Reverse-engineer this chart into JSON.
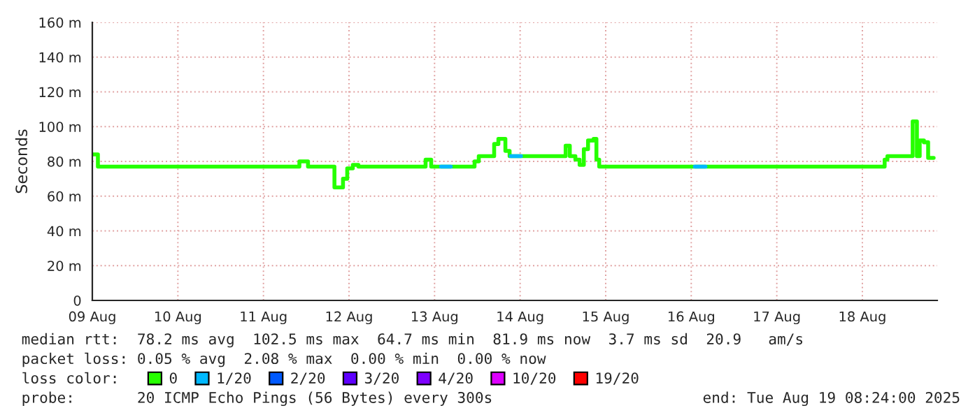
{
  "chart_data": {
    "type": "step",
    "ylabel": "Seconds",
    "xlim": [
      "2025-08-09T00:00",
      "2025-08-18T21:00"
    ],
    "xticks": [
      {
        "value": "2025-08-09",
        "label": "09 Aug"
      },
      {
        "value": "2025-08-10",
        "label": "10 Aug"
      },
      {
        "value": "2025-08-11",
        "label": "11 Aug"
      },
      {
        "value": "2025-08-12",
        "label": "12 Aug"
      },
      {
        "value": "2025-08-13",
        "label": "13 Aug"
      },
      {
        "value": "2025-08-14",
        "label": "14 Aug"
      },
      {
        "value": "2025-08-15",
        "label": "15 Aug"
      },
      {
        "value": "2025-08-16",
        "label": "16 Aug"
      },
      {
        "value": "2025-08-17",
        "label": "17 Aug"
      },
      {
        "value": "2025-08-18",
        "label": "18 Aug"
      }
    ],
    "ylim": [
      0,
      160
    ],
    "yticks": [
      0,
      {
        "value": 20,
        "label": "20 m"
      },
      {
        "value": 40,
        "label": "40 m"
      },
      {
        "value": 60,
        "label": "60 m"
      },
      {
        "value": 80,
        "label": "80 m"
      },
      {
        "value": 100,
        "label": "100 m"
      },
      {
        "value": 120,
        "label": "120 m"
      },
      {
        "value": 140,
        "label": "140 m"
      },
      {
        "value": 160,
        "label": "160 m"
      }
    ],
    "grid": true,
    "legend": "bottom",
    "series": [
      {
        "name": "0",
        "color": "#26ff00",
        "x": [
          "2025-08-09T00:00",
          "2025-08-09T01:34",
          "2025-08-11T10:05",
          "2025-08-11T12:30",
          "2025-08-11T19:55",
          "2025-08-11T22:19",
          "2025-08-11T23:30",
          "2025-08-12T01:04",
          "2025-08-12T02:38",
          "2025-08-12T21:29",
          "2025-08-12T23:03",
          "2025-08-13T11:13",
          "2025-08-13T12:24",
          "2025-08-13T16:43",
          "2025-08-13T17:54",
          "2025-08-13T19:52",
          "2025-08-13T21:03",
          "2025-08-14T12:46",
          "2025-08-14T13:56",
          "2025-08-14T15:30",
          "2025-08-14T16:41",
          "2025-08-14T17:52",
          "2025-08-14T19:03",
          "2025-08-14T20:37",
          "2025-08-14T21:24",
          "2025-08-14T22:11",
          "2025-08-18T06:15",
          "2025-08-18T07:02",
          "2025-08-18T14:07",
          "2025-08-18T15:18",
          "2025-08-18T16:05",
          "2025-08-18T17:16",
          "2025-08-18T18:27",
          "2025-08-18T20:00"
        ],
        "values": [
          84,
          77,
          80,
          77,
          65,
          70,
          76,
          78,
          77,
          81,
          77,
          80,
          83,
          90,
          93,
          86,
          83,
          89,
          83,
          81,
          78,
          87,
          92,
          93,
          81,
          77,
          81,
          83,
          103,
          83,
          92,
          91,
          82,
          82
        ]
      },
      {
        "name": "1/20",
        "color": "#00b8ff",
        "x": [
          "2025-08-13T01:48",
          "2025-08-13T04:33",
          "2025-08-13T04:34",
          "2025-08-13T21:23",
          "2025-08-14T00:14",
          "2025-08-14T00:15",
          "2025-08-16T01:00",
          "2025-08-16T04:00"
        ],
        "values": [
          77,
          77,
          null,
          83,
          83,
          null,
          77,
          77
        ]
      },
      {
        "name": "2/20",
        "color": "#0059ff"
      },
      {
        "name": "3/20",
        "color": "#5e00ff"
      },
      {
        "name": "4/20",
        "color": "#7e00ff"
      },
      {
        "name": "10/20",
        "color": "#dd00ff"
      },
      {
        "name": "19/20",
        "color": "#ff0000"
      }
    ],
    "annotations": [
      "median rtt:  78.2 ms avg  102.5 ms max  64.7 ms min  81.9 ms now  3.7 ms sd  20.9   am/s",
      "packet loss: 0.05 % avg  2.08 % max  0.00 % min  0.00 % now",
      "loss color:",
      "probe:       20 ICMP Echo Pings (56 Bytes) every 300s",
      "end: Tue Aug 19 08:24:00 2025"
    ]
  }
}
